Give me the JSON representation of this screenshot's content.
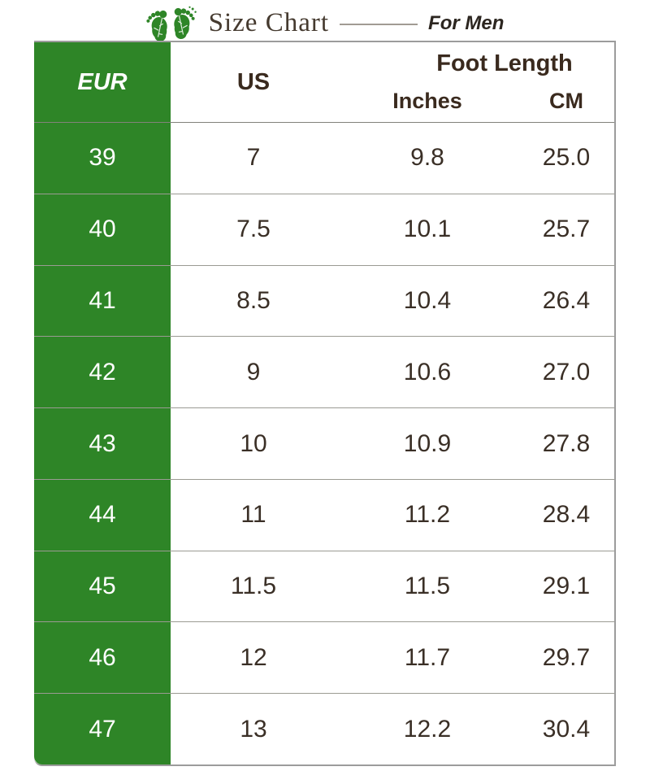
{
  "header": {
    "title": "Size Chart",
    "subtitle": "For Men",
    "icon": "footprints-icon"
  },
  "colors": {
    "green": "#2e8527",
    "text_dark": "#3a2f26",
    "header_text": "#3a2a1e",
    "border_gray": "#9c9c9c",
    "eur_text": "#ffffff"
  },
  "table": {
    "headers": {
      "eur": "EUR",
      "us": "US",
      "foot_length": "Foot Length",
      "inches": "Inches",
      "cm": "CM"
    }
  },
  "chart_data": {
    "type": "table",
    "title": "Size Chart",
    "subtitle": "For Men",
    "columns": [
      "EUR",
      "US",
      "Inches",
      "CM"
    ],
    "column_groups": [
      {
        "label": "Foot Length",
        "spans": [
          "Inches",
          "CM"
        ]
      }
    ],
    "rows": [
      [
        "39",
        "7",
        "9.8",
        "25.0"
      ],
      [
        "40",
        "7.5",
        "10.1",
        "25.7"
      ],
      [
        "41",
        "8.5",
        "10.4",
        "26.4"
      ],
      [
        "42",
        "9",
        "10.6",
        "27.0"
      ],
      [
        "43",
        "10",
        "10.9",
        "27.8"
      ],
      [
        "44",
        "11",
        "11.2",
        "28.4"
      ],
      [
        "45",
        "11.5",
        "11.5",
        "29.1"
      ],
      [
        "46",
        "12",
        "11.7",
        "29.7"
      ],
      [
        "47",
        "13",
        "12.2",
        "30.4"
      ]
    ]
  }
}
